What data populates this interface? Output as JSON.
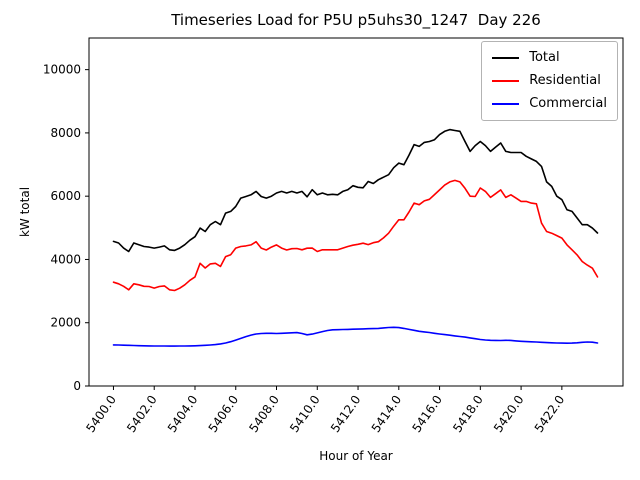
{
  "figure": {
    "title": "Timeseries Load for P5U p5uhs30_1247  Day 226",
    "xlabel": "Hour of Year",
    "ylabel": "kW total"
  },
  "legend": {
    "position": "upper right",
    "entries": [
      {
        "label": "Total",
        "color": "#000000"
      },
      {
        "label": "Residential",
        "color": "#ff0000"
      },
      {
        "label": "Commercial",
        "color": "#0000ff"
      }
    ]
  },
  "chart_data": {
    "type": "line",
    "title": "Timeseries Load for P5U p5uhs30_1247  Day 226",
    "xlabel": "Hour of Year",
    "ylabel": "kW total",
    "xlim": [
      5398.8,
      5425.0
    ],
    "ylim": [
      0,
      11000
    ],
    "xticks": [
      5400,
      5402,
      5404,
      5406,
      5408,
      5410,
      5412,
      5414,
      5416,
      5418,
      5420,
      5422
    ],
    "xtick_labels": [
      "5400.0",
      "5402.0",
      "5404.0",
      "5406.0",
      "5408.0",
      "5410.0",
      "5412.0",
      "5414.0",
      "5416.0",
      "5418.0",
      "5420.0",
      "5422.0"
    ],
    "yticks": [
      0,
      2000,
      4000,
      6000,
      8000,
      10000
    ],
    "ytick_labels": [
      "0",
      "2000",
      "4000",
      "6000",
      "8000",
      "10000"
    ],
    "grid": false,
    "legend_position": "upper right",
    "x": [
      5400.0,
      5400.25,
      5400.5,
      5400.75,
      5401.0,
      5401.25,
      5401.5,
      5401.75,
      5402.0,
      5402.25,
      5402.5,
      5402.75,
      5403.0,
      5403.25,
      5403.5,
      5403.75,
      5404.0,
      5404.25,
      5404.5,
      5404.75,
      5405.0,
      5405.25,
      5405.5,
      5405.75,
      5406.0,
      5406.25,
      5406.5,
      5406.75,
      5407.0,
      5407.25,
      5407.5,
      5407.75,
      5408.0,
      5408.25,
      5408.5,
      5408.75,
      5409.0,
      5409.25,
      5409.5,
      5409.75,
      5410.0,
      5410.25,
      5410.5,
      5410.75,
      5411.0,
      5411.25,
      5411.5,
      5411.75,
      5412.0,
      5412.25,
      5412.5,
      5412.75,
      5413.0,
      5413.25,
      5413.5,
      5413.75,
      5414.0,
      5414.25,
      5414.5,
      5414.75,
      5415.0,
      5415.25,
      5415.5,
      5415.75,
      5416.0,
      5416.25,
      5416.5,
      5416.75,
      5417.0,
      5417.25,
      5417.5,
      5417.75,
      5418.0,
      5418.25,
      5418.5,
      5418.75,
      5419.0,
      5419.25,
      5419.5,
      5419.75,
      5420.0,
      5420.25,
      5420.5,
      5420.75,
      5421.0,
      5421.25,
      5421.5,
      5421.75,
      5422.0,
      5422.25,
      5422.5,
      5422.75,
      5423.0,
      5423.25,
      5423.5,
      5423.75
    ],
    "series": [
      {
        "name": "Total",
        "color": "#000000",
        "values": [
          4570,
          4520,
          4360,
          4250,
          4520,
          4465,
          4410,
          4390,
          4360,
          4390,
          4430,
          4305,
          4285,
          4360,
          4465,
          4610,
          4720,
          4990,
          4885,
          5100,
          5200,
          5100,
          5465,
          5520,
          5675,
          5940,
          5990,
          6045,
          6150,
          5990,
          5940,
          6000,
          6100,
          6150,
          6100,
          6150,
          6100,
          6150,
          5980,
          6205,
          6045,
          6100,
          6045,
          6060,
          6045,
          6150,
          6205,
          6330,
          6280,
          6265,
          6465,
          6400,
          6520,
          6600,
          6680,
          6900,
          7045,
          6995,
          7300,
          7630,
          7575,
          7700,
          7730,
          7785,
          7945,
          8050,
          8105,
          8075,
          8050,
          7730,
          7415,
          7600,
          7730,
          7600,
          7415,
          7550,
          7680,
          7415,
          7380,
          7380,
          7380,
          7260,
          7180,
          7100,
          6940,
          6450,
          6310,
          6000,
          5890,
          5570,
          5520,
          5310,
          5100,
          5100,
          4990,
          4835
        ]
      },
      {
        "name": "Residential",
        "color": "#ff0000",
        "values": [
          3280,
          3230,
          3150,
          3040,
          3230,
          3200,
          3150,
          3145,
          3095,
          3145,
          3165,
          3040,
          3020,
          3090,
          3200,
          3340,
          3450,
          3880,
          3730,
          3860,
          3880,
          3780,
          4090,
          4150,
          4360,
          4410,
          4430,
          4460,
          4560,
          4360,
          4300,
          4390,
          4460,
          4360,
          4300,
          4340,
          4345,
          4305,
          4355,
          4360,
          4250,
          4305,
          4305,
          4305,
          4305,
          4360,
          4410,
          4450,
          4480,
          4515,
          4470,
          4530,
          4560,
          4680,
          4830,
          5050,
          5255,
          5255,
          5500,
          5780,
          5730,
          5850,
          5900,
          6050,
          6200,
          6350,
          6450,
          6500,
          6450,
          6250,
          6000,
          5990,
          6260,
          6150,
          5960,
          6080,
          6200,
          5960,
          6045,
          5940,
          5835,
          5835,
          5780,
          5760,
          5150,
          4885,
          4830,
          4755,
          4675,
          4460,
          4305,
          4145,
          3935,
          3820,
          3725,
          3450
        ]
      },
      {
        "name": "Commercial",
        "color": "#0000ff",
        "values": [
          1300,
          1295,
          1290,
          1285,
          1280,
          1275,
          1270,
          1268,
          1265,
          1265,
          1263,
          1262,
          1262,
          1263,
          1265,
          1268,
          1272,
          1278,
          1285,
          1295,
          1310,
          1330,
          1360,
          1400,
          1450,
          1505,
          1560,
          1610,
          1645,
          1660,
          1665,
          1665,
          1660,
          1665,
          1672,
          1682,
          1688,
          1660,
          1618,
          1640,
          1680,
          1720,
          1755,
          1775,
          1780,
          1785,
          1790,
          1795,
          1800,
          1805,
          1810,
          1815,
          1820,
          1835,
          1850,
          1855,
          1845,
          1820,
          1790,
          1760,
          1730,
          1710,
          1690,
          1665,
          1645,
          1625,
          1605,
          1585,
          1565,
          1545,
          1520,
          1495,
          1470,
          1455,
          1445,
          1440,
          1438,
          1445,
          1440,
          1425,
          1412,
          1405,
          1398,
          1390,
          1380,
          1372,
          1365,
          1360,
          1355,
          1352,
          1355,
          1365,
          1380,
          1390,
          1385,
          1360
        ]
      }
    ]
  }
}
